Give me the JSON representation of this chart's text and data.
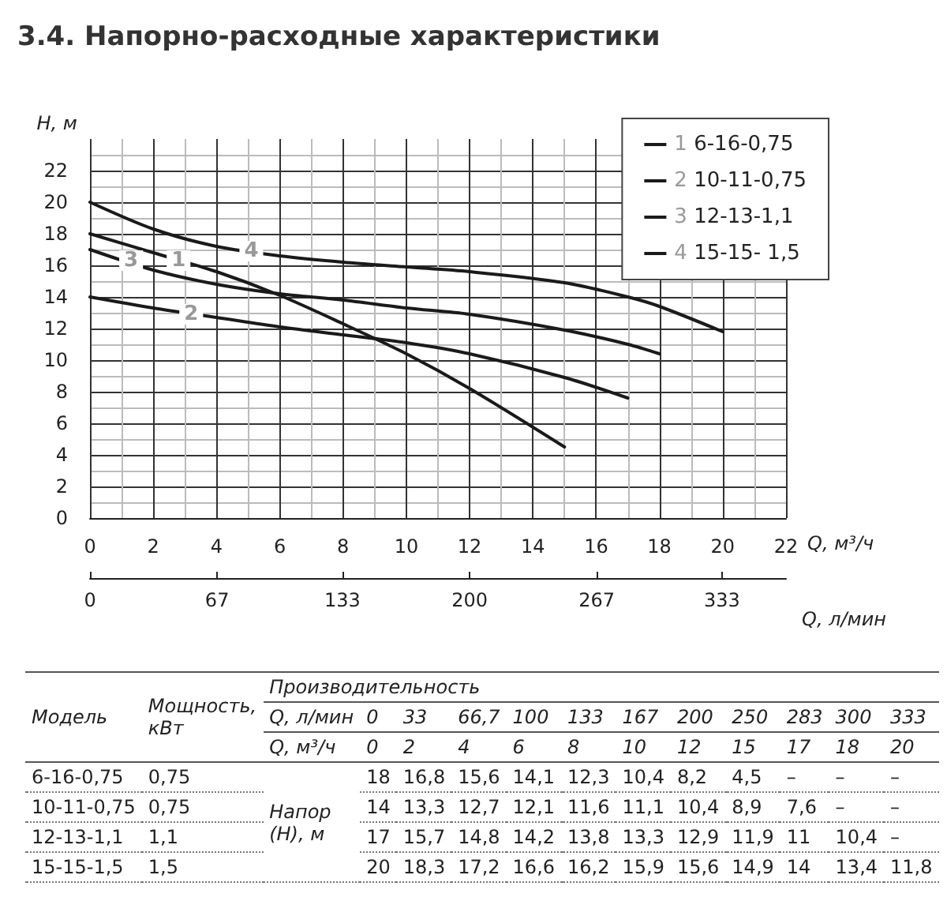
{
  "chart_data": {
    "type": "line",
    "title": "3.4. Напорно-расходные характеристики",
    "xlabel": "Q, м³/ч",
    "ylabel": "H, м",
    "x2label": "Q, л/мин",
    "x": [
      0,
      2,
      4,
      6,
      8,
      10,
      12,
      15,
      17,
      18,
      20
    ],
    "series": [
      {
        "name": "1 6-16-0,75",
        "color": "#1a1a1a",
        "values": [
          18,
          16.8,
          15.6,
          14.1,
          12.3,
          10.4,
          8.2,
          4.5,
          null,
          null,
          null
        ]
      },
      {
        "name": "2 10-11-0,75",
        "color": "#1a1a1a",
        "values": [
          14,
          13.3,
          12.7,
          12.1,
          11.6,
          11.1,
          10.4,
          8.9,
          7.6,
          null,
          null
        ]
      },
      {
        "name": "3 12-13-1,1",
        "color": "#1a1a1a",
        "values": [
          17,
          15.7,
          14.8,
          14.2,
          13.8,
          13.3,
          12.9,
          11.9,
          11,
          10.4,
          null
        ]
      },
      {
        "name": "4 15-15- 1,5",
        "color": "#1a1a1a",
        "values": [
          20,
          18.3,
          17.2,
          16.6,
          16.2,
          15.9,
          15.6,
          14.9,
          14,
          13.4,
          11.8
        ]
      }
    ],
    "xlim": [
      0,
      22
    ],
    "xticks": [
      0,
      2,
      4,
      6,
      8,
      10,
      12,
      14,
      16,
      18,
      20,
      22
    ],
    "ylim": [
      0,
      24
    ],
    "yticks": [
      0,
      2,
      4,
      6,
      8,
      10,
      12,
      14,
      16,
      18,
      20,
      22
    ],
    "x2lim": [
      0,
      366.7
    ],
    "x2ticks": [
      0,
      67,
      133,
      200,
      267,
      333
    ],
    "grid": true,
    "legend": "top right",
    "marker": "none",
    "line_style": "solid",
    "annotations": [
      {
        "text": "1",
        "x": 2.8,
        "y": 16.3
      },
      {
        "text": "2",
        "x": 3.2,
        "y": 12.9
      },
      {
        "text": "3",
        "x": 1.3,
        "y": 16.3
      },
      {
        "text": "4",
        "x": 5.1,
        "y": 16.9
      },
      "Модель",
      "Мощность, кВт",
      "Производительность",
      "Q, л/мин",
      "Q, м³/ч",
      "Напор (Н), м",
      "0",
      "33",
      "66,7",
      "100",
      "133",
      "167",
      "200",
      "250",
      "283",
      "300",
      "333",
      "0",
      "2",
      "4",
      "6",
      "8",
      "10",
      "12",
      "15",
      "17",
      "18",
      "20",
      "6-16-0,75",
      "0,75",
      "18",
      "16,8",
      "15,6",
      "14,1",
      "12,3",
      "10,4",
      "8,2",
      "4,5",
      "–",
      "–",
      "–",
      "10-11-0,75",
      "0,75",
      "14",
      "13,3",
      "12,7",
      "12,1",
      "11,6",
      "11,1",
      "10,4",
      "8,9",
      "7,6",
      "–",
      "–",
      "12-13-1,1",
      "1,1",
      "17",
      "15,7",
      "14,8",
      "14,2",
      "13,8",
      "13,3",
      "12,9",
      "11,9",
      "11",
      "10,4",
      "–",
      "15-15-1,5",
      "1,5",
      "20",
      "18,3",
      "17,2",
      "16,6",
      "16,2",
      "15,9",
      "15,6",
      "14,9",
      "14",
      "13,4",
      "11,8"
    ]
  }
}
